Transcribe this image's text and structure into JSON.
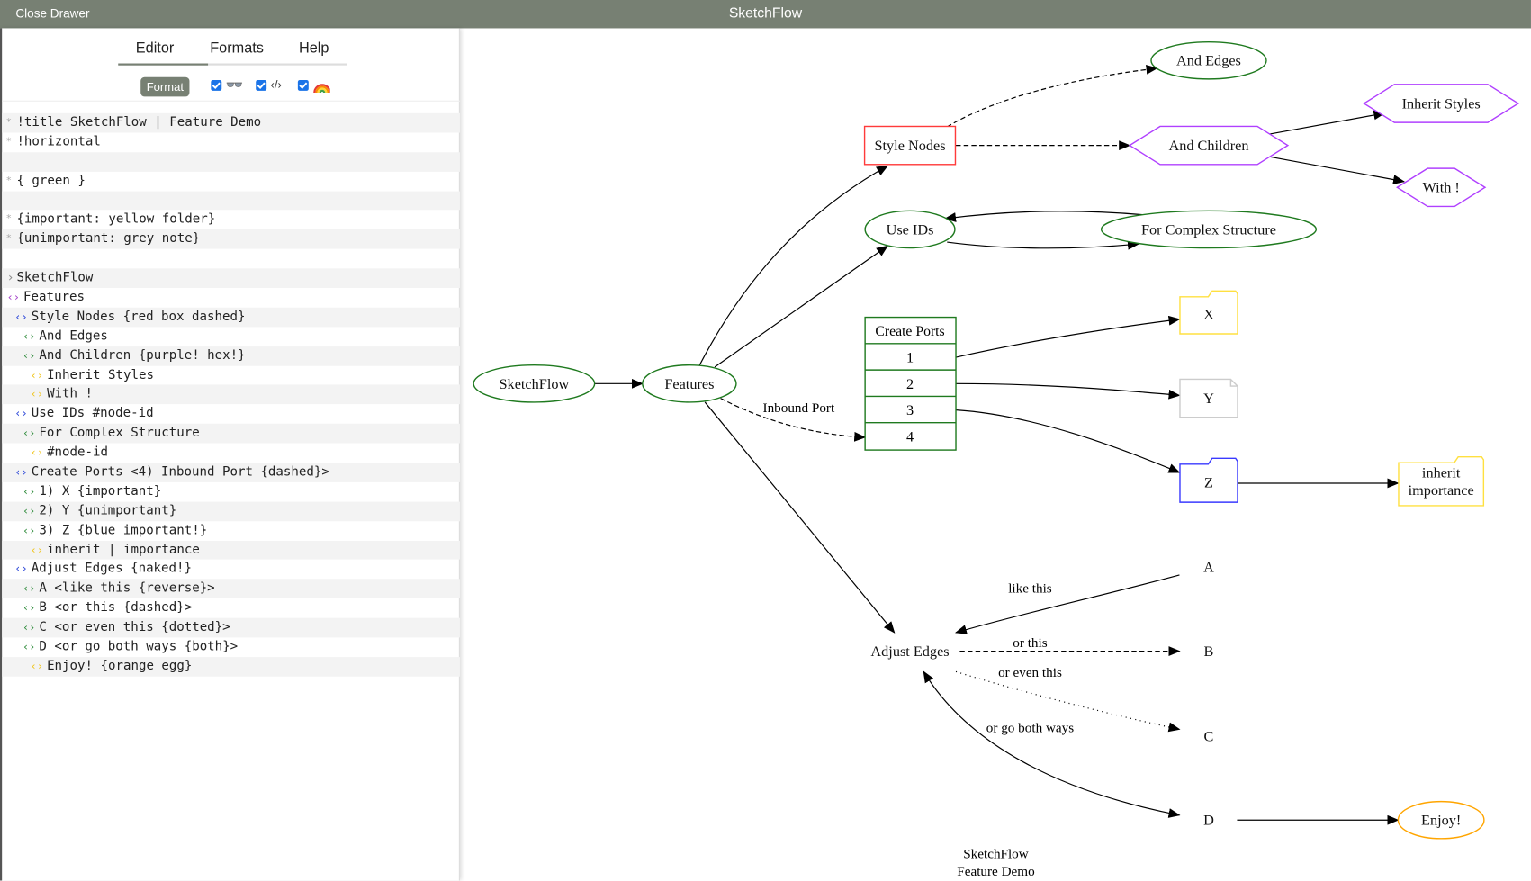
{
  "topbar": {
    "close_drawer": "Close Drawer",
    "title": "SketchFlow"
  },
  "tabs": [
    {
      "label": "Editor",
      "active": true
    },
    {
      "label": "Formats",
      "active": false
    },
    {
      "label": "Help",
      "active": false
    }
  ],
  "toolbar": {
    "format_label": "Format",
    "toggles": [
      {
        "icon": "glasses-icon",
        "checked": true
      },
      {
        "icon": "code-icon",
        "checked": true,
        "glyph": "‹/›"
      },
      {
        "icon": "rainbow-icon",
        "checked": true
      }
    ]
  },
  "accent_color": "#778073",
  "editor": {
    "lines": [
      {
        "kind": "meta",
        "level": 0,
        "text": "!title SketchFlow | Feature Demo"
      },
      {
        "kind": "meta",
        "level": 0,
        "text": "!horizontal"
      },
      {
        "kind": "empty",
        "level": 0,
        "text": ""
      },
      {
        "kind": "meta",
        "level": 0,
        "text": "{ green }"
      },
      {
        "kind": "empty",
        "level": 0,
        "text": ""
      },
      {
        "kind": "meta",
        "level": 0,
        "text": "{important: yellow folder}"
      },
      {
        "kind": "meta",
        "level": 0,
        "text": "{unimportant: grey note}"
      },
      {
        "kind": "empty",
        "level": 0,
        "text": ""
      },
      {
        "kind": "root",
        "level": 0,
        "text": "SketchFlow"
      },
      {
        "kind": "node",
        "level": 0,
        "text": "Features"
      },
      {
        "kind": "node",
        "level": 1,
        "text": "Style Nodes {red box dashed}"
      },
      {
        "kind": "node",
        "level": 2,
        "text": "And Edges"
      },
      {
        "kind": "node",
        "level": 2,
        "text": "And Children {purple! hex!}"
      },
      {
        "kind": "node",
        "level": 3,
        "text": "Inherit Styles"
      },
      {
        "kind": "node",
        "level": 3,
        "text": "With !"
      },
      {
        "kind": "node",
        "level": 1,
        "text": "Use IDs #node-id"
      },
      {
        "kind": "node",
        "level": 2,
        "text": "For Complex Structure"
      },
      {
        "kind": "node",
        "level": 3,
        "text": "#node-id"
      },
      {
        "kind": "node",
        "level": 1,
        "text": "Create Ports <4) Inbound Port {dashed}>"
      },
      {
        "kind": "node",
        "level": 2,
        "text": "1) X {important}"
      },
      {
        "kind": "node",
        "level": 2,
        "text": "2) Y {unimportant}"
      },
      {
        "kind": "node",
        "level": 2,
        "text": "3) Z {blue important!}"
      },
      {
        "kind": "node",
        "level": 3,
        "text": "inherit | importance"
      },
      {
        "kind": "node",
        "level": 1,
        "text": "Adjust Edges {naked!}"
      },
      {
        "kind": "node",
        "level": 2,
        "text": "A <like this {reverse}>"
      },
      {
        "kind": "node",
        "level": 2,
        "text": "B <or this {dashed}>"
      },
      {
        "kind": "node",
        "level": 2,
        "text": "C <or even this {dotted}>"
      },
      {
        "kind": "node",
        "level": 2,
        "text": "D <or go both ways {both}>"
      },
      {
        "kind": "node",
        "level": 3,
        "text": "Enjoy! {orange egg}"
      }
    ],
    "level_colors": [
      "#a23ec8",
      "#2a45d8",
      "#2e8b3a",
      "#f0c419"
    ]
  },
  "graph": {
    "title_lines": [
      "SketchFlow",
      "Feature Demo"
    ],
    "nodes": [
      {
        "id": "sketchflow",
        "label": [
          "SketchFlow"
        ],
        "shape": "ellipse",
        "color": "#1f7a1f"
      },
      {
        "id": "features",
        "label": [
          "Features"
        ],
        "shape": "ellipse",
        "color": "#1f7a1f"
      },
      {
        "id": "style",
        "label": [
          "Style Nodes"
        ],
        "shape": "box",
        "color": "#ff3b3b"
      },
      {
        "id": "andedges",
        "label": [
          "And Edges"
        ],
        "shape": "ellipse",
        "color": "#1f7a1f"
      },
      {
        "id": "andchildren",
        "label": [
          "And Children"
        ],
        "shape": "hexagon",
        "color": "#b040ff"
      },
      {
        "id": "inherit",
        "label": [
          "Inherit Styles"
        ],
        "shape": "hexagon",
        "color": "#b040ff"
      },
      {
        "id": "with",
        "label": [
          "With !"
        ],
        "shape": "hexagon",
        "color": "#b040ff"
      },
      {
        "id": "useids",
        "label": [
          "Use IDs"
        ],
        "shape": "ellipse",
        "color": "#1f7a1f"
      },
      {
        "id": "complex",
        "label": [
          "For Complex Structure"
        ],
        "shape": "ellipse",
        "color": "#1f7a1f"
      },
      {
        "id": "x",
        "label": [
          "X"
        ],
        "shape": "folder",
        "color": "#ffe040"
      },
      {
        "id": "y",
        "label": [
          "Y"
        ],
        "shape": "note",
        "color": "#cccccc"
      },
      {
        "id": "z",
        "label": [
          "Z"
        ],
        "shape": "folder",
        "color": "#3a3aff"
      },
      {
        "id": "inhimp",
        "label": [
          "inherit",
          "importance"
        ],
        "shape": "folder",
        "color": "#ffe040"
      },
      {
        "id": "adjust",
        "label": [
          "Adjust Edges"
        ],
        "shape": "plain",
        "color": ""
      },
      {
        "id": "a",
        "label": [
          "A"
        ],
        "shape": "plain",
        "color": ""
      },
      {
        "id": "b",
        "label": [
          "B"
        ],
        "shape": "plain",
        "color": ""
      },
      {
        "id": "c",
        "label": [
          "C"
        ],
        "shape": "plain",
        "color": ""
      },
      {
        "id": "d",
        "label": [
          "D"
        ],
        "shape": "plain",
        "color": ""
      },
      {
        "id": "enjoy",
        "label": [
          "Enjoy!"
        ],
        "shape": "ellipse",
        "color": "#ffa500"
      }
    ],
    "ports": {
      "node": "create",
      "header": "Create Ports",
      "cells": [
        "1",
        "2",
        "3",
        "4"
      ],
      "color": "#1f7a1f"
    },
    "edges": [
      {
        "from": "sketchflow",
        "to": "features",
        "style": "solid",
        "label": ""
      },
      {
        "from": "features",
        "to": "style",
        "style": "solid",
        "label": ""
      },
      {
        "from": "features",
        "to": "useids",
        "style": "solid",
        "label": ""
      },
      {
        "from": "features",
        "to": "create:4",
        "style": "dashed",
        "label": "Inbound Port"
      },
      {
        "from": "features",
        "to": "adjust",
        "style": "solid",
        "label": ""
      },
      {
        "from": "style",
        "to": "andedges",
        "style": "dashed",
        "label": ""
      },
      {
        "from": "style",
        "to": "andchildren",
        "style": "dashed",
        "label": ""
      },
      {
        "from": "andchildren",
        "to": "inherit",
        "style": "solid",
        "label": ""
      },
      {
        "from": "andchildren",
        "to": "with",
        "style": "solid",
        "label": ""
      },
      {
        "from": "complex",
        "to": "useids",
        "style": "solid",
        "label": ""
      },
      {
        "from": "useids",
        "to": "complex",
        "style": "solid",
        "label": ""
      },
      {
        "from": "create:1",
        "to": "x",
        "style": "solid",
        "label": ""
      },
      {
        "from": "create:2",
        "to": "y",
        "style": "solid",
        "label": ""
      },
      {
        "from": "create:3",
        "to": "z",
        "style": "solid",
        "label": ""
      },
      {
        "from": "z",
        "to": "inhimp",
        "style": "solid",
        "label": ""
      },
      {
        "from": "adjust",
        "to": "a",
        "style": "reverse",
        "label": "like this"
      },
      {
        "from": "adjust",
        "to": "b",
        "style": "dashed",
        "label": "or this"
      },
      {
        "from": "adjust",
        "to": "c",
        "style": "dotted",
        "label": "or even this"
      },
      {
        "from": "adjust",
        "to": "d",
        "style": "both",
        "label": "or go both ways"
      },
      {
        "from": "d",
        "to": "enjoy",
        "style": "solid",
        "label": ""
      }
    ]
  }
}
